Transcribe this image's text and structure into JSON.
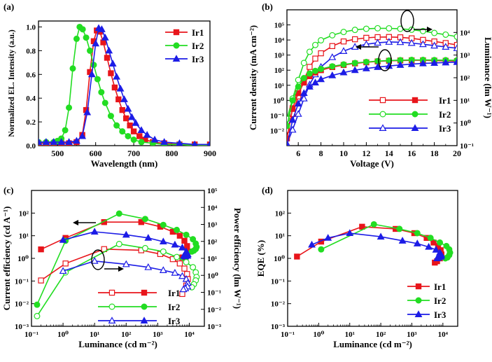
{
  "colors": {
    "Ir1": "#e8151b",
    "Ir2": "#22dd22",
    "Ir3": "#1c1ce6",
    "axis": "#000000"
  },
  "chart_data": [
    {
      "id": "a",
      "panel_label": "(a)",
      "type": "line",
      "title": "",
      "xlabel": "Wavelength (nm)",
      "ylabel": "Normalized EL. Intensity (a.u.)",
      "xlim": [
        450,
        900
      ],
      "ylim": [
        0,
        1.05
      ],
      "xticks": [
        "500",
        "600",
        "700",
        "800",
        "900"
      ],
      "yticks": [
        "0.0",
        "0.2",
        "0.4",
        "0.6",
        "0.8",
        "1.0"
      ],
      "legend": [
        "Ir1",
        "Ir2",
        "Ir3"
      ],
      "legend_position": "top-right",
      "series": [
        {
          "name": "Ir1",
          "marker": "square",
          "x": [
            450,
            470,
            490,
            510,
            530,
            550,
            565,
            575,
            585,
            595,
            603,
            611,
            620,
            630,
            640,
            650,
            660,
            670,
            680,
            690,
            700,
            715,
            730,
            750,
            780,
            820,
            860,
            900
          ],
          "y": [
            0.02,
            0.02,
            0.02,
            0.02,
            0.02,
            0.03,
            0.09,
            0.3,
            0.62,
            0.88,
            0.97,
            0.96,
            0.87,
            0.74,
            0.61,
            0.49,
            0.39,
            0.3,
            0.23,
            0.17,
            0.12,
            0.08,
            0.05,
            0.03,
            0.02,
            0.01,
            0.01,
            0.01
          ]
        },
        {
          "name": "Ir2",
          "marker": "circle",
          "x": [
            450,
            470,
            490,
            500,
            510,
            520,
            530,
            540,
            550,
            558,
            566,
            575,
            585,
            595,
            605,
            615,
            625,
            640,
            655,
            670,
            685,
            700,
            720,
            750,
            780,
            820,
            860,
            900
          ],
          "y": [
            0.03,
            0.03,
            0.03,
            0.04,
            0.06,
            0.13,
            0.32,
            0.65,
            0.9,
            1.0,
            0.98,
            0.91,
            0.8,
            0.68,
            0.56,
            0.45,
            0.36,
            0.25,
            0.17,
            0.12,
            0.08,
            0.05,
            0.03,
            0.02,
            0.01,
            0.01,
            0.0,
            0.0
          ]
        },
        {
          "name": "Ir3",
          "marker": "triangle",
          "x": [
            450,
            470,
            490,
            510,
            530,
            550,
            565,
            578,
            590,
            600,
            608,
            616,
            625,
            635,
            645,
            655,
            665,
            675,
            685,
            695,
            705,
            720,
            735,
            755,
            780,
            820,
            860,
            900
          ],
          "y": [
            0.03,
            0.03,
            0.03,
            0.03,
            0.03,
            0.04,
            0.08,
            0.28,
            0.6,
            0.86,
            0.99,
            0.98,
            0.91,
            0.8,
            0.69,
            0.58,
            0.48,
            0.39,
            0.31,
            0.24,
            0.19,
            0.13,
            0.09,
            0.05,
            0.03,
            0.02,
            0.01,
            0.01
          ]
        }
      ]
    },
    {
      "id": "b",
      "panel_label": "(b)",
      "type": "line",
      "title": "",
      "xlabel": "Voltage (V)",
      "ylabel": "Current density (mA cm⁻²)",
      "ylabel_right": "Luminance (lm W⁻¹)",
      "xscale": "linear",
      "yscale": "log",
      "xlim": [
        5,
        20
      ],
      "ylim": [
        0.001,
        1000000
      ],
      "ylim_right": [
        0.1,
        100000
      ],
      "xticks": [
        "6",
        "8",
        "10",
        "12",
        "14",
        "16",
        "18",
        "20"
      ],
      "yticks_exp": [
        -2,
        -1,
        0,
        1,
        2,
        3,
        4,
        5
      ],
      "yticks_right_exp": [
        -1,
        0,
        1,
        2,
        3,
        4
      ],
      "legend": [
        "Ir1",
        "Ir1",
        "Ir2",
        "Ir2",
        "Ir3",
        "Ir3"
      ],
      "legend_labels": [
        "Ir1",
        "Ir2",
        "Ir3"
      ],
      "legend_position": "bottom-right",
      "annotations": [
        "arrow-right-to-right-axis (open symbols)",
        "arrow-left-to-left-axis (filled symbols)"
      ],
      "series": [
        {
          "name": "Ir1 luminance",
          "axis": "right",
          "marker": "square",
          "filled": false,
          "x": [
            5,
            5.5,
            6,
            6.5,
            7,
            7.5,
            8,
            9,
            10,
            11,
            12,
            13,
            14,
            15,
            16,
            17,
            18,
            19,
            20
          ],
          "y": [
            0.5,
            2.5,
            15,
            80,
            300,
            700,
            1200,
            2500,
            4000,
            5000,
            5800,
            6200,
            6300,
            6100,
            5500,
            4700,
            4000,
            3400,
            2800
          ]
        },
        {
          "name": "Ir2 luminance",
          "axis": "right",
          "marker": "circle",
          "filled": false,
          "x": [
            5,
            5.5,
            6,
            6.5,
            7,
            7.5,
            8,
            9,
            10,
            11,
            12,
            13,
            14,
            15,
            16,
            17,
            18,
            19,
            20
          ],
          "y": [
            1.5,
            12,
            80,
            450,
            1400,
            2800,
            4500,
            7500,
            10500,
            13000,
            14500,
            15300,
            15200,
            14500,
            13200,
            11500,
            9500,
            8000,
            6500
          ]
        },
        {
          "name": "Ir3 luminance",
          "axis": "right",
          "marker": "triangle",
          "filled": false,
          "x": [
            5,
            5.5,
            6,
            6.5,
            7,
            7.5,
            8,
            9,
            10,
            11,
            12,
            13,
            14,
            15,
            16,
            17,
            18,
            19,
            20
          ],
          "y": [
            0.12,
            0.5,
            2.5,
            12,
            50,
            140,
            300,
            800,
            1500,
            2300,
            3000,
            3500,
            3800,
            3700,
            3400,
            3000,
            2600,
            2300,
            2000
          ]
        },
        {
          "name": "Ir1 current density",
          "axis": "left",
          "marker": "square",
          "filled": true,
          "x": [
            5,
            5.5,
            6,
            6.5,
            7,
            7.5,
            8,
            9,
            10,
            11,
            12,
            13,
            14,
            15,
            16,
            17,
            18,
            19,
            20
          ],
          "y": [
            0.003,
            0.3,
            3,
            15,
            40,
            70,
            100,
            160,
            220,
            280,
            330,
            380,
            420,
            440,
            450,
            450,
            430,
            420,
            400
          ]
        },
        {
          "name": "Ir2 current density",
          "axis": "left",
          "marker": "circle",
          "filled": true,
          "x": [
            5,
            5.5,
            6,
            6.5,
            7,
            7.5,
            8,
            9,
            10,
            11,
            12,
            13,
            14,
            15,
            16,
            17,
            18,
            19,
            20
          ],
          "y": [
            0.02,
            1,
            8,
            30,
            60,
            90,
            120,
            180,
            240,
            300,
            350,
            400,
            440,
            460,
            480,
            480,
            470,
            460,
            450
          ]
        },
        {
          "name": "Ir3 current density",
          "axis": "left",
          "marker": "triangle",
          "filled": true,
          "x": [
            5,
            5.5,
            6,
            6.5,
            7,
            7.5,
            8,
            9,
            10,
            11,
            12,
            13,
            14,
            15,
            16,
            17,
            18,
            19,
            20
          ],
          "y": [
            0.001,
            0.05,
            0.6,
            3,
            8,
            15,
            25,
            45,
            70,
            100,
            130,
            160,
            190,
            220,
            250,
            280,
            300,
            320,
            340
          ]
        }
      ]
    },
    {
      "id": "c",
      "panel_label": "(c)",
      "type": "line",
      "title": "",
      "xlabel": "Luminance (cd m⁻²)",
      "ylabel": "Current efficiency (cd A⁻¹)",
      "ylabel_right": "Power efficiency (lm W⁻¹)",
      "xscale": "log",
      "yscale": "log",
      "xlim": [
        0.1,
        30000
      ],
      "ylim": [
        0.001,
        1000
      ],
      "ylim_right": [
        0.001,
        100000
      ],
      "xticks_exp": [
        -1,
        0,
        1,
        2,
        3,
        4
      ],
      "yticks_exp": [
        -3,
        -2,
        -1,
        0,
        1,
        2
      ],
      "yticks_right_exp": [
        -3,
        -2,
        -1,
        0,
        1,
        2,
        3,
        4,
        5
      ],
      "legend": [
        "Ir1",
        "Ir1",
        "Ir2",
        "Ir2",
        "Ir3",
        "Ir3"
      ],
      "legend_labels": [
        "Ir1",
        "Ir2",
        "Ir3"
      ],
      "legend_position": "bottom-right",
      "annotations": [
        "arrow-left (filled = current efficiency)",
        "arrow-right (open = power efficiency)"
      ],
      "series": [
        {
          "name": "Ir1 current efficiency",
          "axis": "left",
          "marker": "square",
          "filled": true,
          "x": [
            0.2,
            1.2,
            20,
            300,
            1200,
            3000,
            5000,
            7000,
            8500,
            9000,
            8000,
            6000
          ],
          "y": [
            2.5,
            8,
            40,
            40,
            25,
            15,
            10,
            6,
            3.5,
            2,
            1.3,
            1.1
          ]
        },
        {
          "name": "Ir2 current efficiency",
          "axis": "left",
          "marker": "circle",
          "filled": true,
          "x": [
            0.15,
            1.2,
            60,
            400,
            1500,
            4000,
            8000,
            13000,
            16000,
            17000,
            16000,
            14000,
            12000
          ],
          "y": [
            0.009,
            6,
            95,
            55,
            30,
            18,
            11,
            7,
            4.5,
            3.2,
            2.6,
            2.2,
            2
          ]
        },
        {
          "name": "Ir3 current efficiency",
          "axis": "left",
          "marker": "triangle",
          "filled": true,
          "x": [
            1,
            10,
            100,
            500,
            1500,
            3500,
            6000,
            8000,
            9000,
            8800,
            7500,
            6500
          ],
          "y": [
            6.5,
            15,
            11,
            8,
            5.5,
            4,
            3,
            2,
            1.5,
            1.3,
            1.2,
            1.2
          ]
        },
        {
          "name": "Ir1 power efficiency",
          "axis": "right",
          "marker": "square",
          "filled": false,
          "x": [
            0.2,
            1.2,
            20,
            300,
            1200,
            3000,
            5000,
            7000,
            8500,
            9000,
            8000,
            6000
          ],
          "y": [
            0.5,
            5,
            35,
            30,
            18,
            9,
            5,
            2.5,
            1.2,
            0.6,
            0.25,
            0.08
          ]
        },
        {
          "name": "Ir2 power efficiency",
          "axis": "right",
          "marker": "circle",
          "filled": false,
          "x": [
            0.15,
            1.2,
            60,
            400,
            1500,
            4000,
            8000,
            13000,
            16000,
            17000,
            16000,
            14000,
            12000
          ],
          "y": [
            0.004,
            1.5,
            70,
            40,
            25,
            12,
            6,
            3,
            1.5,
            0.8,
            0.5,
            0.3,
            0.2
          ]
        },
        {
          "name": "Ir3 power efficiency",
          "axis": "right",
          "marker": "triangle",
          "filled": false,
          "x": [
            1,
            10,
            100,
            500,
            1500,
            3500,
            6000,
            8000,
            9000,
            8800,
            7500,
            6500
          ],
          "y": [
            1.8,
            7,
            4.5,
            3,
            2,
            1.4,
            0.9,
            0.6,
            0.35,
            0.22,
            0.17,
            0.15
          ]
        }
      ]
    },
    {
      "id": "d",
      "panel_label": "(d)",
      "type": "line",
      "title": "",
      "xlabel": "Luminance (cd m⁻²)",
      "ylabel": "EQE (%)",
      "xscale": "log",
      "yscale": "log",
      "xlim": [
        0.1,
        30000
      ],
      "ylim": [
        0.001,
        1000
      ],
      "xticks_exp": [
        -1,
        0,
        1,
        2,
        3,
        4
      ],
      "yticks_exp": [
        -3,
        -2,
        -1,
        0,
        1,
        2
      ],
      "legend": [
        "Ir1",
        "Ir2",
        "Ir3"
      ],
      "legend_position": "bottom-right",
      "series": [
        {
          "name": "Ir1",
          "marker": "square",
          "x": [
            0.2,
            1.2,
            25,
            300,
            1200,
            3000,
            5000,
            7000,
            8500,
            9000,
            8000,
            6500,
            5500
          ],
          "y": [
            1.2,
            5.5,
            25,
            20,
            13,
            8,
            5,
            3.5,
            2.3,
            1.5,
            1,
            0.75,
            0.65
          ]
        },
        {
          "name": "Ir2",
          "marker": "circle",
          "x": [
            1.2,
            60,
            400,
            1500,
            4000,
            8000,
            13000,
            16000,
            17000,
            16000,
            14000,
            12000
          ],
          "y": [
            2.5,
            32,
            20,
            13,
            8,
            5,
            3.5,
            2.5,
            1.8,
            1.4,
            1.1,
            1
          ]
        },
        {
          "name": "Ir3",
          "marker": "triangle",
          "x": [
            0.6,
            2,
            10,
            100,
            500,
            1500,
            3500,
            6000,
            8000,
            9000,
            8800,
            7500,
            6500
          ],
          "y": [
            4,
            8,
            13,
            9,
            6,
            4.5,
            3.2,
            2.4,
            1.8,
            1.4,
            1.2,
            1.1,
            1
          ]
        }
      ]
    }
  ]
}
